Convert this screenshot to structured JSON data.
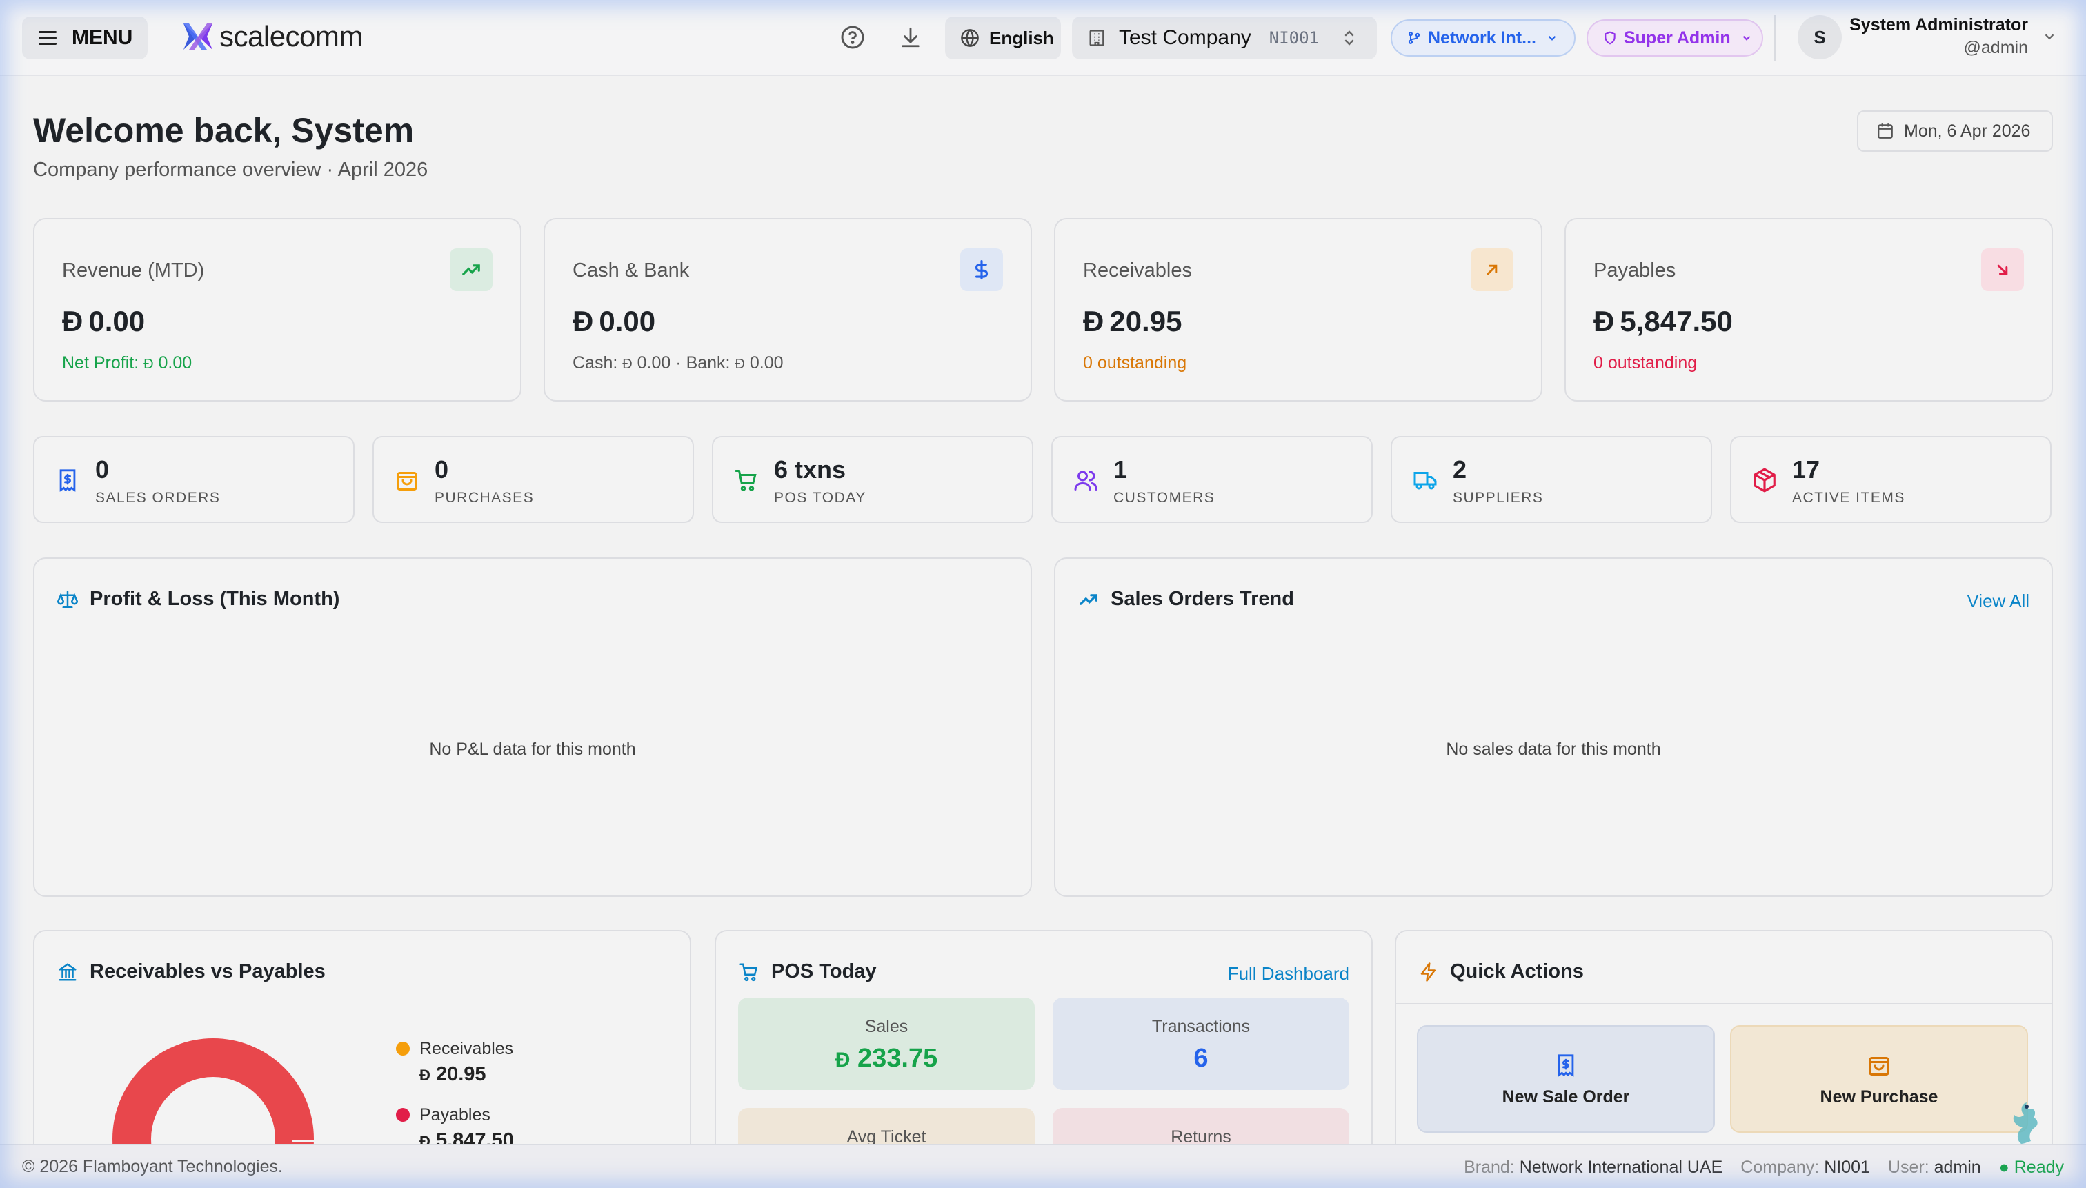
{
  "header": {
    "menu_label": "MENU",
    "brand": "scalecomm",
    "language": "English",
    "company_name": "Test Company",
    "company_code": "NI001",
    "network": "Network Int...",
    "role": "Super Admin",
    "avatar_initial": "S",
    "user_name": "System Administrator",
    "user_handle": "@admin"
  },
  "welcome": {
    "title": "Welcome back, System",
    "subtitle": "Company performance overview · April 2026",
    "date": "Mon, 6 Apr 2026"
  },
  "currency_symbol": "Đ",
  "kpis": [
    {
      "title": "Revenue (MTD)",
      "value": "0.00",
      "sub_label": "Net Profit:",
      "sub_value": "0.00",
      "icon": "trending-up-icon",
      "accent": "#16a34a"
    },
    {
      "title": "Cash & Bank",
      "value": "0.00",
      "sub_label": "Cash:",
      "sub_value": "0.00",
      "sub_label2": "· Bank:",
      "sub_value2": "0.00",
      "icon": "dollar-icon",
      "accent": "#2563eb"
    },
    {
      "title": "Receivables",
      "value": "20.95",
      "sub_text": "0 outstanding",
      "icon": "arrow-up-right-icon",
      "accent": "#d97706"
    },
    {
      "title": "Payables",
      "value": "5,847.50",
      "sub_text": "0 outstanding",
      "icon": "arrow-down-right-icon",
      "accent": "#e11d48"
    }
  ],
  "stats": [
    {
      "value": "0",
      "label": "SALES ORDERS",
      "icon": "receipt-icon",
      "accent": "#2563eb"
    },
    {
      "value": "0",
      "label": "PURCHASES",
      "icon": "shopping-bag-icon",
      "accent": "#f59e0b"
    },
    {
      "value": "6 txns",
      "label": "POS TODAY",
      "icon": "cart-icon",
      "accent": "#16a34a"
    },
    {
      "value": "1",
      "label": "CUSTOMERS",
      "icon": "users-icon",
      "accent": "#7c3aed"
    },
    {
      "value": "2",
      "label": "SUPPLIERS",
      "icon": "truck-icon",
      "accent": "#0ea5e9"
    },
    {
      "value": "17",
      "label": "ACTIVE ITEMS",
      "icon": "box-icon",
      "accent": "#e11d48"
    }
  ],
  "pnl": {
    "title": "Profit & Loss (This Month)",
    "empty": "No P&L data for this month"
  },
  "sales_trend": {
    "title": "Sales Orders Trend",
    "link": "View All",
    "empty": "No sales data for this month"
  },
  "rvp": {
    "title": "Receivables vs Payables",
    "receivables_label": "Receivables",
    "receivables_value": "20.95",
    "payables_label": "Payables",
    "payables_value": "5,847.50",
    "receivables_color": "#f59e0b",
    "payables_color": "#e11d48"
  },
  "pos": {
    "title": "POS Today",
    "link": "Full Dashboard",
    "sales_label": "Sales",
    "sales_value": "233.75",
    "txn_label": "Transactions",
    "txn_value": "6",
    "avg_label": "Avg Ticket",
    "returns_label": "Returns"
  },
  "quick_actions": {
    "title": "Quick Actions",
    "new_sale_order": "New Sale Order",
    "new_purchase": "New Purchase"
  },
  "footer": {
    "copyright": "© 2026 Flamboyant Technologies.",
    "brand_key": "Brand:",
    "brand_value": "Network International UAE",
    "company_key": "Company:",
    "company_value": "NI001",
    "user_key": "User:",
    "user_value": "admin",
    "status": "Ready"
  }
}
